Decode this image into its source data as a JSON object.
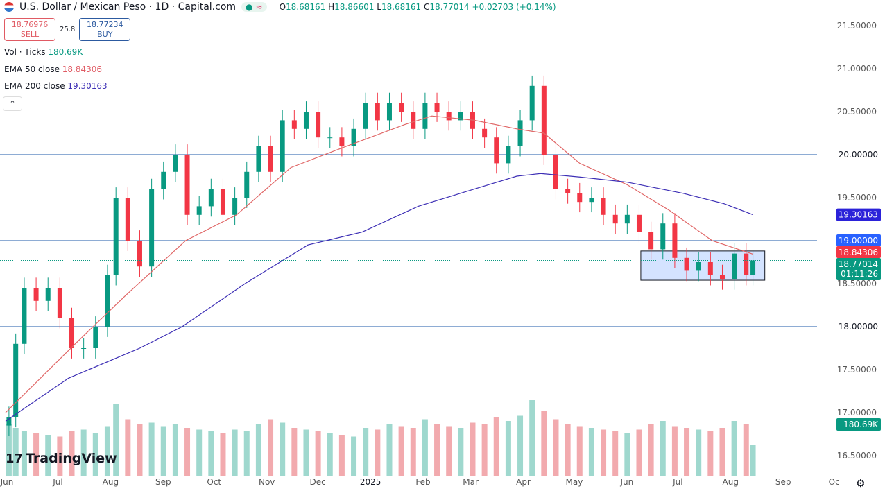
{
  "header": {
    "title": "U.S. Dollar / Mexican Peso · 1D · Capital.com",
    "market_status_icon": "dot-icon",
    "delay_icon": "approx-icon",
    "open_label": "O",
    "open": "18.68161",
    "high_label": "H",
    "high": "18.86601",
    "low_label": "L",
    "low": "18.68161",
    "close_label": "C",
    "close": "18.77014",
    "change": "+0.02703 (+0.14%)"
  },
  "trade": {
    "sell_price": "18.76976",
    "sell_label": "SELL",
    "spread": "25.8",
    "buy_price": "18.77234",
    "buy_label": "BUY"
  },
  "legend": {
    "vol_label": "Vol · Ticks",
    "vol_value": "180.69K",
    "ema50_label": "EMA 50 close",
    "ema50_value": "18.84306",
    "ema200_label": "EMA 200 close",
    "ema200_value": "19.30163"
  },
  "collapse_icon": "chevron-up-icon",
  "branding": "TradingView",
  "colors": {
    "up": "#089981",
    "down": "#f23645",
    "ema50": "#e06666",
    "ema200": "#3d2fb5",
    "hline": "#1e5aa8",
    "range_box": "#c9dcff"
  },
  "chart_data": {
    "type": "candlestick",
    "symbol": "USDMXN",
    "interval": "1D",
    "ylim": [
      16.4,
      21.6
    ],
    "y_ticks": [
      "21.50000",
      "21.00000",
      "20.50000",
      "20.00000",
      "19.50000",
      "19.00000",
      "18.50000",
      "18.00000",
      "17.50000",
      "17.00000",
      "16.50000"
    ],
    "x_ticks": [
      [
        "2024-06-01",
        "Jun"
      ],
      [
        "2024-07-01",
        "Jul"
      ],
      [
        "2024-08-01",
        "Aug"
      ],
      [
        "2024-09-01",
        "Sep"
      ],
      [
        "2024-10-01",
        "Oct"
      ],
      [
        "2024-11-01",
        "Nov"
      ],
      [
        "2024-12-01",
        "Dec"
      ],
      [
        "2025-01-01",
        "2025"
      ],
      [
        "2025-02-01",
        "Feb"
      ],
      [
        "2025-03-01",
        "Mar"
      ],
      [
        "2025-04-01",
        "Apr"
      ],
      [
        "2025-05-01",
        "May"
      ],
      [
        "2025-06-01",
        "Jun"
      ],
      [
        "2025-07-01",
        "Jul"
      ],
      [
        "2025-08-01",
        "Aug"
      ],
      [
        "2025-09-01",
        "Sep"
      ],
      [
        "2025-10-01",
        "Oc"
      ]
    ],
    "closes": [
      [
        "2024-06-03",
        16.95
      ],
      [
        "2024-06-07",
        17.8
      ],
      [
        "2024-06-12",
        18.45
      ],
      [
        "2024-06-19",
        18.3
      ],
      [
        "2024-06-26",
        18.45
      ],
      [
        "2024-07-03",
        18.1
      ],
      [
        "2024-07-10",
        17.75
      ],
      [
        "2024-07-17",
        17.75
      ],
      [
        "2024-07-24",
        18.0
      ],
      [
        "2024-07-31",
        18.6
      ],
      [
        "2024-08-05",
        19.5
      ],
      [
        "2024-08-12",
        19.0
      ],
      [
        "2024-08-19",
        18.7
      ],
      [
        "2024-08-26",
        19.6
      ],
      [
        "2024-09-02",
        19.8
      ],
      [
        "2024-09-09",
        20.0
      ],
      [
        "2024-09-16",
        19.3
      ],
      [
        "2024-09-23",
        19.4
      ],
      [
        "2024-09-30",
        19.6
      ],
      [
        "2024-10-07",
        19.3
      ],
      [
        "2024-10-14",
        19.5
      ],
      [
        "2024-10-21",
        19.8
      ],
      [
        "2024-10-28",
        20.1
      ],
      [
        "2024-11-04",
        19.8
      ],
      [
        "2024-11-11",
        20.4
      ],
      [
        "2024-11-18",
        20.3
      ],
      [
        "2024-11-25",
        20.5
      ],
      [
        "2024-12-02",
        20.2
      ],
      [
        "2024-12-09",
        20.2
      ],
      [
        "2024-12-16",
        20.1
      ],
      [
        "2024-12-23",
        20.3
      ],
      [
        "2024-12-30",
        20.6
      ],
      [
        "2025-01-06",
        20.4
      ],
      [
        "2025-01-13",
        20.6
      ],
      [
        "2025-01-20",
        20.5
      ],
      [
        "2025-01-27",
        20.3
      ],
      [
        "2025-02-03",
        20.6
      ],
      [
        "2025-02-10",
        20.5
      ],
      [
        "2025-02-17",
        20.4
      ],
      [
        "2025-02-24",
        20.5
      ],
      [
        "2025-03-03",
        20.3
      ],
      [
        "2025-03-10",
        20.2
      ],
      [
        "2025-03-17",
        19.9
      ],
      [
        "2025-03-24",
        20.1
      ],
      [
        "2025-03-31",
        20.4
      ],
      [
        "2025-04-07",
        20.8
      ],
      [
        "2025-04-14",
        20.0
      ],
      [
        "2025-04-21",
        19.6
      ],
      [
        "2025-04-28",
        19.55
      ],
      [
        "2025-05-05",
        19.45
      ],
      [
        "2025-05-12",
        19.5
      ],
      [
        "2025-05-19",
        19.3
      ],
      [
        "2025-05-26",
        19.2
      ],
      [
        "2025-06-02",
        19.3
      ],
      [
        "2025-06-09",
        19.1
      ],
      [
        "2025-06-16",
        18.9
      ],
      [
        "2025-06-23",
        19.2
      ],
      [
        "2025-06-30",
        18.8
      ],
      [
        "2025-07-07",
        18.65
      ],
      [
        "2025-07-14",
        18.75
      ],
      [
        "2025-07-21",
        18.6
      ],
      [
        "2025-07-28",
        18.55
      ],
      [
        "2025-08-04",
        18.85
      ],
      [
        "2025-08-11",
        18.6
      ],
      [
        "2025-08-15",
        18.77014
      ]
    ],
    "volume_k": [
      300,
      280,
      260,
      250,
      240,
      230,
      260,
      270,
      250,
      290,
      420,
      330,
      300,
      310,
      290,
      300,
      280,
      270,
      260,
      250,
      270,
      260,
      300,
      330,
      310,
      280,
      270,
      260,
      250,
      240,
      230,
      280,
      270,
      300,
      290,
      280,
      330,
      300,
      290,
      280,
      310,
      300,
      340,
      320,
      350,
      440,
      380,
      330,
      300,
      290,
      280,
      270,
      260,
      250,
      270,
      300,
      320,
      290,
      280,
      270,
      260,
      280,
      320,
      300,
      180.69
    ],
    "ema50": [
      [
        "2024-06-01",
        17.0
      ],
      [
        "2024-07-12",
        17.8
      ],
      [
        "2024-08-10",
        18.35
      ],
      [
        "2024-09-15",
        19.0
      ],
      [
        "2024-10-15",
        19.3
      ],
      [
        "2024-11-16",
        19.85
      ],
      [
        "2024-12-19",
        20.1
      ],
      [
        "2025-01-22",
        20.35
      ],
      [
        "2025-02-07",
        20.45
      ],
      [
        "2025-03-04",
        20.4
      ],
      [
        "2025-03-29",
        20.3
      ],
      [
        "2025-04-14",
        20.25
      ],
      [
        "2025-05-05",
        19.9
      ],
      [
        "2025-06-02",
        19.65
      ],
      [
        "2025-06-27",
        19.35
      ],
      [
        "2025-07-22",
        19.0
      ],
      [
        "2025-08-15",
        18.84306
      ]
    ],
    "ema200": [
      [
        "2024-06-01",
        16.9
      ],
      [
        "2024-07-08",
        17.4
      ],
      [
        "2024-08-19",
        17.75
      ],
      [
        "2024-09-13",
        18.0
      ],
      [
        "2024-10-20",
        18.5
      ],
      [
        "2024-11-26",
        18.95
      ],
      [
        "2024-12-28",
        19.1
      ],
      [
        "2025-01-30",
        19.4
      ],
      [
        "2025-03-04",
        19.6
      ],
      [
        "2025-03-29",
        19.75
      ],
      [
        "2025-04-12",
        19.78
      ],
      [
        "2025-05-05",
        19.74
      ],
      [
        "2025-06-02",
        19.68
      ],
      [
        "2025-07-05",
        19.55
      ],
      [
        "2025-07-29",
        19.43
      ],
      [
        "2025-08-15",
        19.30163
      ]
    ],
    "horizontal_lines": [
      20.0,
      19.0,
      18.0
    ],
    "range_box": {
      "start": "2025-06-10",
      "end": "2025-08-22",
      "top": 18.88,
      "bottom": 18.54
    },
    "price_labels": {
      "ema200": "19.30163",
      "level": "19.00000",
      "ema50": "18.84306",
      "last": "18.77014",
      "countdown": "01:11:26",
      "volume": "180.69K",
      "upper": "20.00000",
      "lower": "18.00000"
    }
  }
}
